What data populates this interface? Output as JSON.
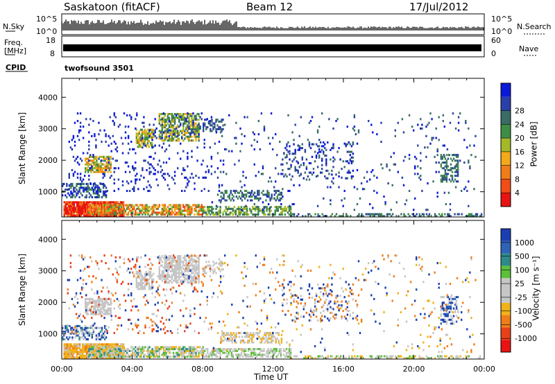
{
  "header": {
    "station": "Saskatoon (fitACF)",
    "beam": "Beam 12",
    "date": "17/Jul/2012"
  },
  "strips": {
    "nsky_label": "N.Sky",
    "nsky_ticks": [
      "10^5",
      "10^0"
    ],
    "nsearch_label": "N.Search",
    "nsearch_ticks": [
      "10^5",
      "10^0"
    ],
    "freq_label": "Freq.",
    "freq_unit": "[MHz]",
    "freq_ticks": [
      "18",
      "8"
    ],
    "nave_label": "Nave",
    "nave_ticks": [
      "60",
      "0"
    ],
    "cpid_label": "CPID",
    "cpid_value": "twofsound 3501"
  },
  "chart_data": [
    {
      "type": "heatmap",
      "name": "power",
      "ylabel": "Slant Range [km]",
      "yticks": [
        1000,
        2000,
        3000,
        4000
      ],
      "ylim": [
        200,
        4600
      ],
      "xlim": [
        0,
        24
      ],
      "colorbar": {
        "label": "Power [dB]",
        "ticks": [
          "4",
          "8",
          "12",
          "16",
          "20",
          "24",
          "28"
        ]
      },
      "colors": [
        "#0a19d8",
        "#2b3fa8",
        "#3a6c66",
        "#3e8d46",
        "#a4b828",
        "#f3a91a",
        "#ef7d1a",
        "#f24c17",
        "#e81414"
      ]
    },
    {
      "type": "heatmap",
      "name": "velocity",
      "ylabel": "Slant Range [km]",
      "yticks": [
        1000,
        2000,
        3000,
        4000
      ],
      "ylim": [
        200,
        4600
      ],
      "xlim": [
        0,
        24
      ],
      "xlabel": "Time UT",
      "xticks": [
        "00:00",
        "04:00",
        "08:00",
        "12:00",
        "16:00",
        "20:00",
        "00:00"
      ],
      "colorbar": {
        "label": "Velocity [m s⁻¹]",
        "ticks": [
          "1000",
          "500",
          "100",
          "25",
          "-25",
          "-100",
          "-500",
          "-1000"
        ]
      },
      "colors": [
        "#1a3fb0",
        "#2e63b8",
        "#2f8a8a",
        "#5cbf3a",
        "#c6c6c6",
        "#c6c6c6",
        "#f0b21a",
        "#ef7d1a",
        "#e84018",
        "#e81414"
      ]
    }
  ]
}
